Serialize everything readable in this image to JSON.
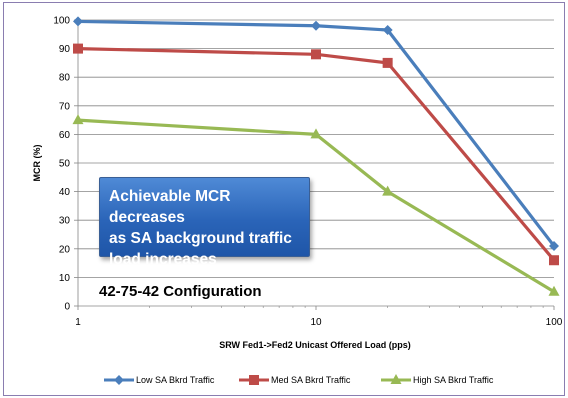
{
  "chart_data": {
    "type": "line",
    "x_scale": "log",
    "xlim": [
      1,
      100
    ],
    "ylim": [
      0,
      100
    ],
    "x_ticks": [
      "1",
      "10",
      "100"
    ],
    "y_ticks": [
      "0",
      "10",
      "20",
      "30",
      "40",
      "50",
      "60",
      "70",
      "80",
      "90",
      "100"
    ],
    "xlabel": "SRW Fed1->Fed2 Unicast Offered Load (pps)",
    "ylabel": "MCR (%)",
    "grid": "horizontal",
    "legend_position": "bottom",
    "series": [
      {
        "name": "Low SA Bkrd Traffic",
        "color": "#4a7ebb",
        "marker": "diamond",
        "x": [
          1,
          10,
          20,
          100
        ],
        "y": [
          99.5,
          98,
          96.5,
          21
        ]
      },
      {
        "name": "Med SA Bkrd Traffic",
        "color": "#be4b48",
        "marker": "square",
        "x": [
          1,
          10,
          20,
          100
        ],
        "y": [
          90,
          88,
          85,
          16
        ]
      },
      {
        "name": "High SA Bkrd Traffic",
        "color": "#98b954",
        "marker": "triangle",
        "x": [
          1,
          10,
          20,
          100
        ],
        "y": [
          65,
          60,
          40,
          5
        ]
      }
    ],
    "annotations": {
      "callout": [
        "Achievable MCR decreases",
        "as SA background traffic",
        "load increases"
      ],
      "config": "42-75-42 Configuration"
    }
  }
}
